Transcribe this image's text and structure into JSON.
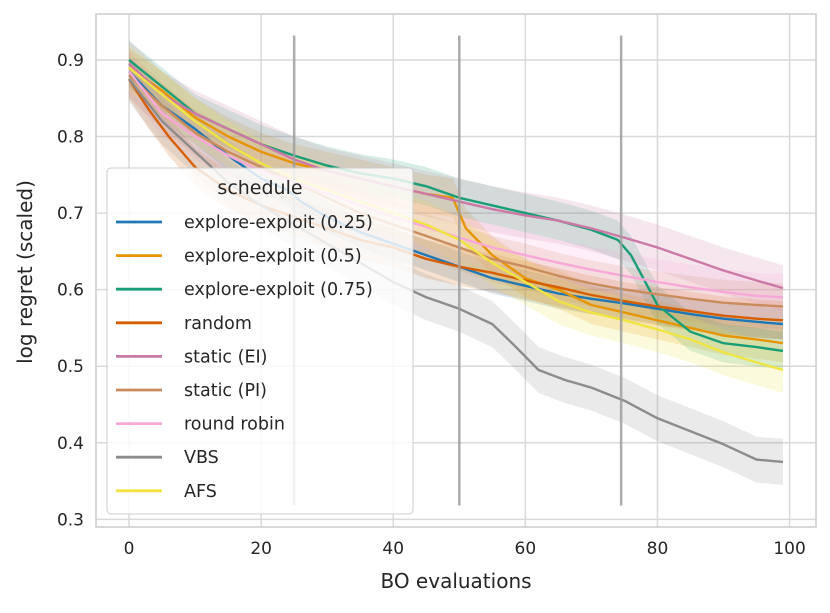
{
  "chart_data": {
    "type": "line",
    "xlabel": "BO evaluations",
    "ylabel": "log regret (scaled)",
    "xlim": [
      -5,
      104
    ],
    "ylim": [
      0.29,
      0.96
    ],
    "xticks": [
      0,
      20,
      40,
      60,
      80,
      100
    ],
    "yticks": [
      0.3,
      0.4,
      0.5,
      0.6,
      0.7,
      0.8,
      0.9
    ],
    "ytick_labels": [
      "0.3",
      "0.4",
      "0.5",
      "0.6",
      "0.7",
      "0.8",
      "0.9"
    ],
    "grid": true,
    "legend_title": "schedule",
    "legend_position": "lower-left",
    "vlines": {
      "x": [
        25,
        50,
        74.5
      ],
      "ymin": 0.318,
      "ymax": 0.932,
      "color": "#9e9e9e"
    },
    "series": [
      {
        "name": "explore-exploit (0.25)",
        "color": "#1f77b4",
        "x": [
          0,
          5,
          10,
          15,
          20,
          24,
          26,
          30,
          35,
          40,
          45,
          50,
          55,
          60,
          65,
          70,
          75,
          80,
          85,
          90,
          95,
          99
        ],
        "y": [
          0.885,
          0.84,
          0.81,
          0.775,
          0.745,
          0.73,
          0.715,
          0.695,
          0.675,
          0.66,
          0.645,
          0.63,
          0.615,
          0.605,
          0.595,
          0.588,
          0.582,
          0.575,
          0.568,
          0.562,
          0.558,
          0.555
        ],
        "band": 0.02
      },
      {
        "name": "explore-exploit (0.5)",
        "color": "#e69500",
        "x": [
          0,
          5,
          10,
          15,
          20,
          25,
          30,
          35,
          40,
          45,
          49,
          51,
          55,
          60,
          65,
          70,
          75,
          80,
          85,
          90,
          95,
          99
        ],
        "y": [
          0.89,
          0.86,
          0.825,
          0.8,
          0.78,
          0.765,
          0.755,
          0.745,
          0.735,
          0.725,
          0.72,
          0.68,
          0.645,
          0.615,
          0.6,
          0.58,
          0.57,
          0.56,
          0.55,
          0.54,
          0.535,
          0.53
        ],
        "band": 0.025
      },
      {
        "name": "explore-exploit (0.75)",
        "color": "#1a9e77",
        "x": [
          0,
          5,
          10,
          15,
          20,
          25,
          30,
          35,
          40,
          45,
          50,
          55,
          60,
          65,
          70,
          74,
          76,
          80,
          85,
          90,
          95,
          99
        ],
        "y": [
          0.9,
          0.865,
          0.83,
          0.81,
          0.79,
          0.775,
          0.762,
          0.752,
          0.745,
          0.735,
          0.72,
          0.71,
          0.7,
          0.69,
          0.678,
          0.665,
          0.645,
          0.58,
          0.545,
          0.53,
          0.525,
          0.52
        ],
        "band": 0.025
      },
      {
        "name": "random",
        "color": "#d55e00",
        "x": [
          0,
          3,
          6,
          10,
          15,
          20,
          25,
          30,
          35,
          40,
          45,
          50,
          55,
          60,
          65,
          70,
          75,
          80,
          85,
          90,
          95,
          99
        ],
        "y": [
          0.875,
          0.835,
          0.8,
          0.76,
          0.73,
          0.71,
          0.695,
          0.68,
          0.665,
          0.655,
          0.64,
          0.63,
          0.622,
          0.612,
          0.603,
          0.593,
          0.585,
          0.578,
          0.572,
          0.566,
          0.562,
          0.56
        ],
        "band": 0.025
      },
      {
        "name": "static (EI)",
        "color": "#cc79a7",
        "x": [
          0,
          5,
          10,
          15,
          20,
          25,
          30,
          35,
          40,
          45,
          50,
          55,
          60,
          65,
          70,
          75,
          80,
          85,
          90,
          95,
          99
        ],
        "y": [
          0.895,
          0.855,
          0.83,
          0.81,
          0.79,
          0.77,
          0.755,
          0.745,
          0.735,
          0.725,
          0.715,
          0.705,
          0.697,
          0.69,
          0.68,
          0.668,
          0.655,
          0.64,
          0.625,
          0.612,
          0.602
        ],
        "band": 0.03
      },
      {
        "name": "static (PI)",
        "color": "#ca8c5c",
        "x": [
          0,
          5,
          10,
          15,
          20,
          25,
          30,
          35,
          40,
          45,
          50,
          55,
          60,
          65,
          70,
          75,
          80,
          85,
          90,
          95,
          99
        ],
        "y": [
          0.88,
          0.84,
          0.805,
          0.78,
          0.76,
          0.74,
          0.72,
          0.7,
          0.685,
          0.67,
          0.655,
          0.64,
          0.63,
          0.618,
          0.608,
          0.6,
          0.594,
          0.588,
          0.583,
          0.58,
          0.578
        ],
        "band": 0.03
      },
      {
        "name": "round robin",
        "color": "#f7a8d8",
        "x": [
          0,
          5,
          10,
          15,
          20,
          25,
          30,
          35,
          40,
          45,
          50,
          55,
          60,
          65,
          70,
          75,
          80,
          85,
          90,
          95,
          99
        ],
        "y": [
          0.885,
          0.83,
          0.8,
          0.775,
          0.755,
          0.74,
          0.725,
          0.71,
          0.695,
          0.682,
          0.668,
          0.655,
          0.645,
          0.635,
          0.626,
          0.618,
          0.61,
          0.603,
          0.597,
          0.592,
          0.59
        ],
        "band": 0.03
      },
      {
        "name": "VBS",
        "color": "#8c8c8c",
        "x": [
          0,
          5,
          10,
          15,
          20,
          25,
          30,
          35,
          40,
          45,
          50,
          55,
          58,
          62,
          66,
          70,
          75,
          80,
          85,
          90,
          95,
          99
        ],
        "y": [
          0.875,
          0.82,
          0.78,
          0.74,
          0.71,
          0.685,
          0.66,
          0.635,
          0.61,
          0.59,
          0.575,
          0.555,
          0.53,
          0.495,
          0.482,
          0.472,
          0.455,
          0.432,
          0.415,
          0.398,
          0.378,
          0.375
        ],
        "band": 0.03
      },
      {
        "name": "AFS",
        "color": "#f0e442",
        "x": [
          0,
          5,
          10,
          15,
          20,
          25,
          30,
          35,
          40,
          45,
          50,
          55,
          60,
          65,
          70,
          75,
          80,
          85,
          90,
          95,
          99
        ],
        "y": [
          0.89,
          0.855,
          0.82,
          0.79,
          0.765,
          0.745,
          0.73,
          0.715,
          0.7,
          0.685,
          0.665,
          0.635,
          0.61,
          0.585,
          0.57,
          0.56,
          0.548,
          0.535,
          0.518,
          0.505,
          0.495
        ],
        "band": 0.03
      }
    ]
  }
}
